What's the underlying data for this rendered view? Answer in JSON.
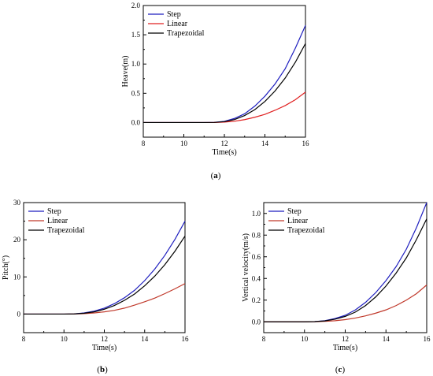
{
  "chart_data": [
    {
      "type": "line",
      "caption": "(a)",
      "caption_letter": "a",
      "xlabel": "Time(s)",
      "ylabel": "Heave(m)",
      "xlim": [
        8,
        16
      ],
      "ylim": [
        -0.25,
        2.0
      ],
      "xticks": [
        8,
        10,
        12,
        14,
        16
      ],
      "yticks": [
        0.0,
        0.5,
        1.0,
        1.5,
        2.0
      ],
      "ytick_labels": [
        "0.0",
        "0.5",
        "1.0",
        "1.5",
        "2.0"
      ],
      "legend_position": "top-left",
      "x": [
        8,
        10,
        11,
        11.5,
        12,
        12.5,
        13,
        13.5,
        14,
        14.5,
        15,
        15.5,
        16
      ],
      "series": [
        {
          "name": "Step",
          "color": "#1f1fbf",
          "values": [
            0,
            0,
            0,
            0.003,
            0.02,
            0.07,
            0.15,
            0.28,
            0.45,
            0.66,
            0.92,
            1.27,
            1.66
          ]
        },
        {
          "name": "Linear",
          "color": "#e02020",
          "values": [
            0,
            0,
            0,
            0.001,
            0.008,
            0.022,
            0.05,
            0.09,
            0.14,
            0.21,
            0.29,
            0.39,
            0.52
          ]
        },
        {
          "name": "Trapezoidal",
          "color": "#000000",
          "values": [
            0,
            0,
            0,
            0.002,
            0.015,
            0.05,
            0.12,
            0.22,
            0.36,
            0.54,
            0.76,
            1.03,
            1.35
          ]
        }
      ]
    },
    {
      "type": "line",
      "caption": "(b)",
      "caption_letter": "b",
      "xlabel": "Time(s)",
      "ylabel": "Pitch(°)",
      "xlim": [
        8,
        16
      ],
      "ylim": [
        -5,
        30
      ],
      "xticks": [
        8,
        10,
        12,
        14,
        16
      ],
      "yticks": [
        0,
        10,
        20,
        30
      ],
      "ytick_labels": [
        "0",
        "10",
        "20",
        "30"
      ],
      "legend_position": "top-left",
      "x": [
        8,
        10,
        10.5,
        11,
        11.5,
        12,
        12.5,
        13,
        13.5,
        14,
        14.5,
        15,
        15.5,
        16
      ],
      "series": [
        {
          "name": "Step",
          "color": "#1f1fbf",
          "values": [
            0,
            0,
            0.05,
            0.3,
            0.8,
            1.6,
            2.8,
            4.4,
            6.4,
            9.0,
            12.1,
            15.8,
            20.1,
            25.0
          ]
        },
        {
          "name": "Linear",
          "color": "#c0392b",
          "values": [
            0,
            0,
            0.02,
            0.1,
            0.3,
            0.6,
            1.0,
            1.6,
            2.4,
            3.3,
            4.3,
            5.5,
            6.8,
            8.2
          ]
        },
        {
          "name": "Trapezoidal",
          "color": "#000000",
          "values": [
            0,
            0,
            0.04,
            0.22,
            0.6,
            1.3,
            2.3,
            3.7,
            5.4,
            7.6,
            10.2,
            13.3,
            16.9,
            21.0
          ]
        }
      ]
    },
    {
      "type": "line",
      "caption": "(c)",
      "caption_letter": "c",
      "xlabel": "Time(s)",
      "ylabel": "Vertical velocity(m/s)",
      "xlim": [
        8,
        16
      ],
      "ylim": [
        -0.1,
        1.1
      ],
      "xticks": [
        8,
        10,
        12,
        14,
        16
      ],
      "yticks": [
        0.0,
        0.2,
        0.4,
        0.6,
        0.8,
        1.0
      ],
      "ytick_labels": [
        "0.0",
        "0.2",
        "0.4",
        "0.6",
        "0.8",
        "1.0"
      ],
      "legend_position": "top-left",
      "x": [
        8,
        10,
        10.5,
        11,
        11.5,
        12,
        12.5,
        13,
        13.5,
        14,
        14.5,
        15,
        15.5,
        16
      ],
      "series": [
        {
          "name": "Step",
          "color": "#1f1fbf",
          "values": [
            0,
            0,
            0.002,
            0.01,
            0.03,
            0.06,
            0.11,
            0.18,
            0.27,
            0.38,
            0.51,
            0.67,
            0.87,
            1.1
          ]
        },
        {
          "name": "Linear",
          "color": "#c0392b",
          "values": [
            0,
            0,
            0.001,
            0.004,
            0.01,
            0.02,
            0.035,
            0.055,
            0.08,
            0.11,
            0.15,
            0.2,
            0.26,
            0.34
          ]
        },
        {
          "name": "Trapezoidal",
          "color": "#000000",
          "values": [
            0,
            0,
            0.002,
            0.008,
            0.024,
            0.05,
            0.09,
            0.15,
            0.23,
            0.33,
            0.45,
            0.59,
            0.76,
            0.95
          ]
        }
      ]
    }
  ]
}
